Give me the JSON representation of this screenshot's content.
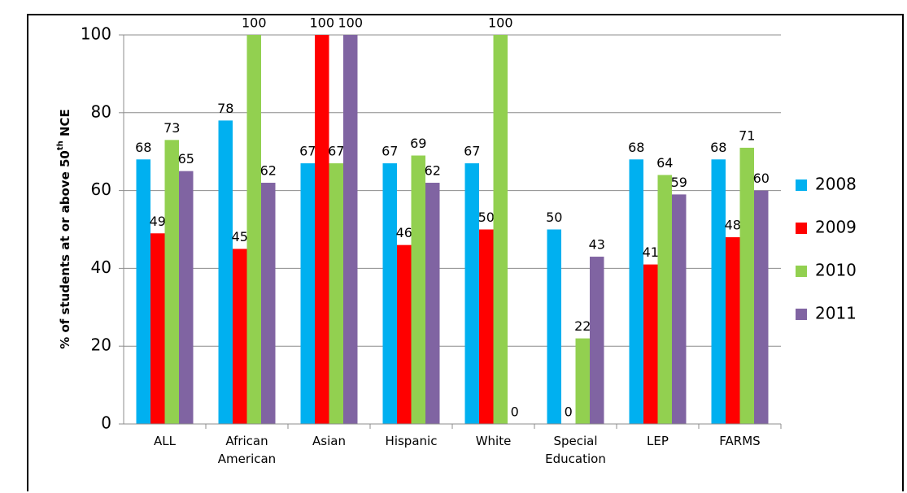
{
  "chart_data": {
    "type": "bar",
    "y_label": [
      "% of students at or above 50",
      "th",
      " NCE"
    ],
    "categories": [
      "ALL",
      "African American",
      "Asian",
      "Hispanic",
      "White",
      "Special Education",
      "LEP",
      "FARMS"
    ],
    "series": [
      {
        "name": "2008",
        "color": "#00b0f0",
        "values": [
          68,
          78,
          67,
          67,
          67,
          50,
          68,
          68
        ]
      },
      {
        "name": "2009",
        "color": "#ff0000",
        "values": [
          49,
          45,
          100,
          46,
          50,
          0,
          41,
          48
        ]
      },
      {
        "name": "2010",
        "color": "#92d050",
        "values": [
          73,
          100,
          67,
          69,
          100,
          22,
          64,
          71
        ]
      },
      {
        "name": "2011",
        "color": "#8064a2",
        "values": [
          65,
          62,
          100,
          62,
          0,
          43,
          59,
          60
        ]
      }
    ],
    "ylim": [
      0,
      100
    ],
    "yticks": [
      0,
      20,
      40,
      60,
      80,
      100
    ],
    "grid": true,
    "legend": "right"
  }
}
